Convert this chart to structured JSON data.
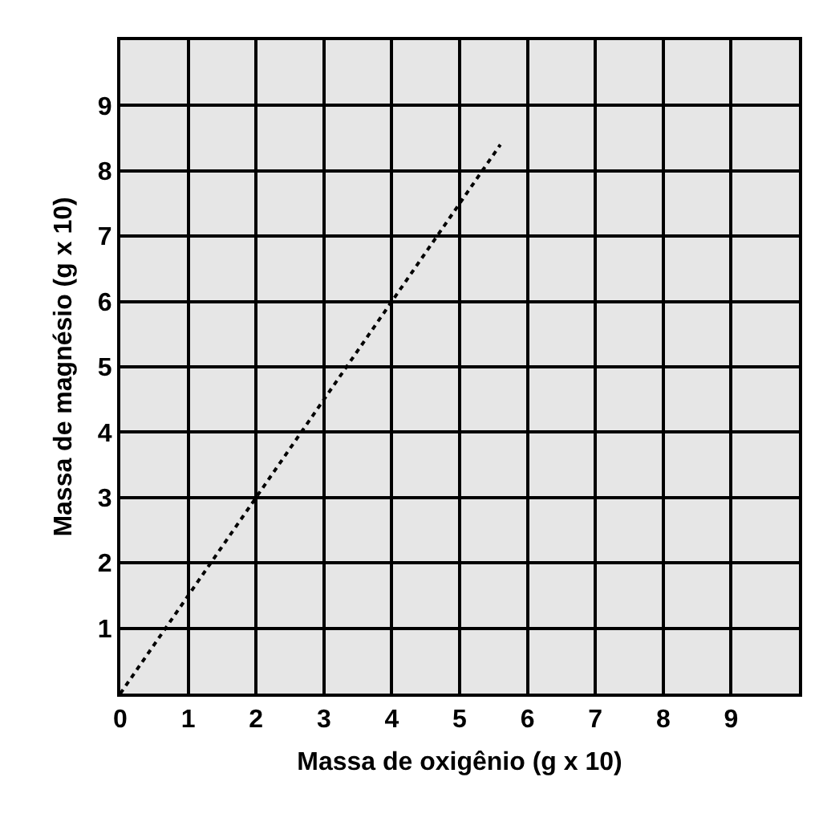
{
  "chart_data": {
    "type": "line",
    "xlabel": "Massa de oxigênio (g x 10)",
    "ylabel": "Massa de magnésio (g x 10)",
    "x": [
      0,
      5.6
    ],
    "series": [
      {
        "color": "#000000",
        "values": [
          0,
          8.4
        ]
      }
    ],
    "xlim": [
      0,
      10
    ],
    "ylim": [
      0,
      10
    ],
    "xticks": [
      0,
      1,
      2,
      3,
      4,
      5,
      6,
      7,
      8,
      9
    ],
    "yticks": [
      1,
      2,
      3,
      4,
      5,
      6,
      7,
      8,
      9
    ],
    "grid": true,
    "marker": "none",
    "line_style": "dotted"
  }
}
